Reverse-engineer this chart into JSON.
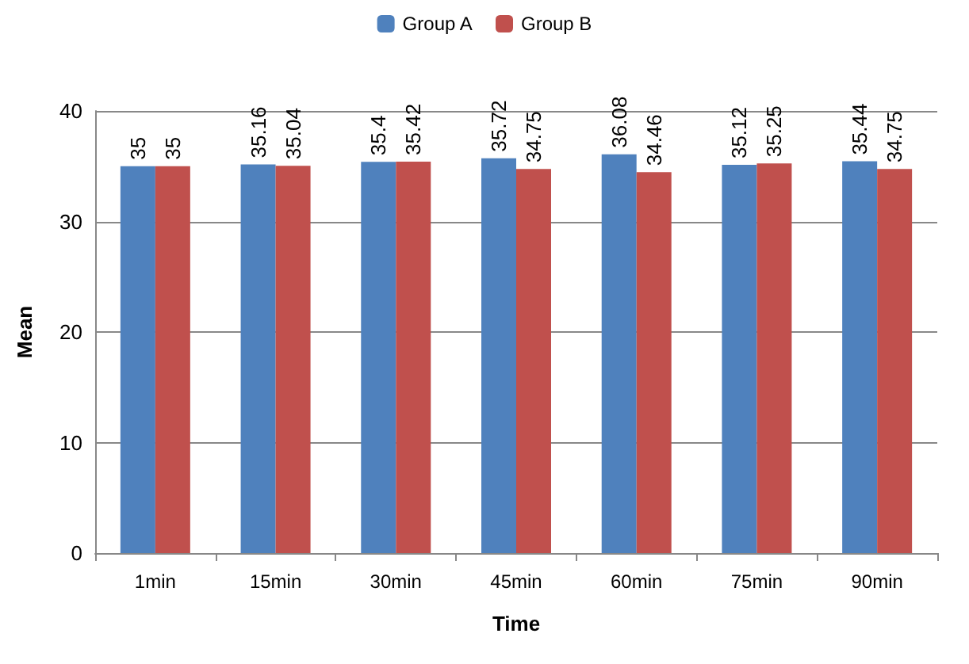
{
  "chart_data": {
    "type": "bar",
    "xlabel": "Time",
    "ylabel": "Mean",
    "categories": [
      "1min",
      "15min",
      "30min",
      "45min",
      "60min",
      "75min",
      "90min"
    ],
    "series": [
      {
        "name": "Group A",
        "color": "#4f81bd",
        "values": [
          35,
          35.16,
          35.4,
          35.72,
          36.08,
          35.12,
          35.44
        ]
      },
      {
        "name": "Group B",
        "color": "#c0504d",
        "values": [
          35,
          35.04,
          35.42,
          34.75,
          34.46,
          35.25,
          34.75
        ]
      }
    ],
    "ylim": [
      0,
      40
    ],
    "yticks": [
      0,
      10,
      20,
      30,
      40
    ],
    "grid": "y",
    "legend": "top",
    "data_labels": true
  }
}
